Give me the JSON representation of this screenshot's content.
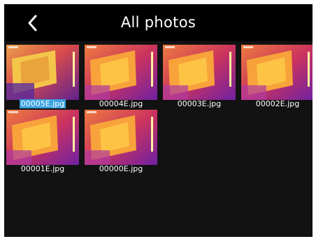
{
  "header": {
    "title": "All photos",
    "back_icon": "chevron-left-icon"
  },
  "photos": [
    {
      "name": "00005E.jpg",
      "selected": true
    },
    {
      "name": "00004E.jpg",
      "selected": false
    },
    {
      "name": "00003E.jpg",
      "selected": false
    },
    {
      "name": "00002E.jpg",
      "selected": false
    },
    {
      "name": "00001E.jpg",
      "selected": false
    },
    {
      "name": "00000E.jpg",
      "selected": false
    }
  ],
  "colors": {
    "background": "#121212",
    "header": "#000000",
    "selection": "#3ba3e0"
  }
}
